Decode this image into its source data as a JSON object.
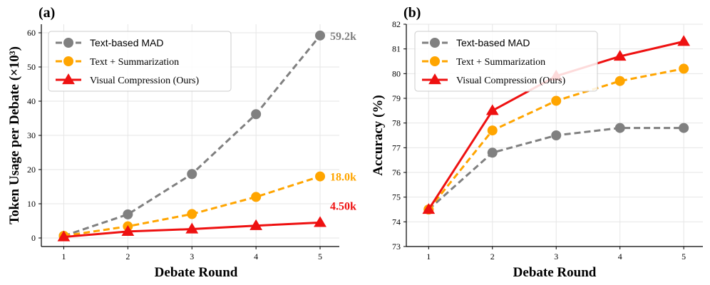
{
  "chart_data": [
    {
      "type": "line",
      "panel_label": "(a)",
      "xlabel": "Debate Round",
      "ylabel": "Token Usage per Debate (×10³)",
      "x": [
        1,
        2,
        3,
        4,
        5
      ],
      "xlim": [
        0.65,
        5.3
      ],
      "ylim": [
        -2.5,
        62.5
      ],
      "yticks": [
        0,
        10,
        20,
        30,
        40,
        50,
        60
      ],
      "grid": true,
      "legend_position": "top-left",
      "series": [
        {
          "name": "Text-based MAD",
          "color": "#808080",
          "dash": "dashed",
          "marker": "circle",
          "values": [
            0.6,
            6.9,
            18.7,
            36.2,
            59.2
          ],
          "end_label": "59.2k"
        },
        {
          "name": "Text + Summarization",
          "color": "#FFA500",
          "dash": "dashed",
          "marker": "circle",
          "values": [
            0.6,
            3.4,
            7.0,
            12.0,
            18.0
          ],
          "end_label": "18.0k"
        },
        {
          "name": "Visual Compression (Ours)",
          "color": "#EE1111",
          "dash": "solid",
          "marker": "triangle",
          "values": [
            0.3,
            1.9,
            2.6,
            3.6,
            4.5
          ],
          "end_label": "4.50k"
        }
      ]
    },
    {
      "type": "line",
      "panel_label": "(b)",
      "xlabel": "Debate Round",
      "ylabel": "Accuracy (%)",
      "x": [
        1,
        2,
        3,
        4,
        5
      ],
      "xlim": [
        0.65,
        5.3
      ],
      "ylim": [
        73,
        82
      ],
      "yticks": [
        73,
        74,
        75,
        76,
        77,
        78,
        79,
        80,
        81,
        82
      ],
      "grid": true,
      "legend_position": "top-left",
      "series": [
        {
          "name": "Text-based MAD",
          "color": "#808080",
          "dash": "dashed",
          "marker": "circle",
          "values": [
            74.5,
            76.8,
            77.5,
            77.8,
            77.8
          ]
        },
        {
          "name": "Text + Summarization",
          "color": "#FFA500",
          "dash": "dashed",
          "marker": "circle",
          "values": [
            74.5,
            77.7,
            78.9,
            79.7,
            80.2
          ]
        },
        {
          "name": "Visual Compression (Ours)",
          "color": "#EE1111",
          "dash": "solid",
          "marker": "triangle",
          "values": [
            74.5,
            78.5,
            79.9,
            80.7,
            81.3
          ]
        }
      ]
    }
  ]
}
